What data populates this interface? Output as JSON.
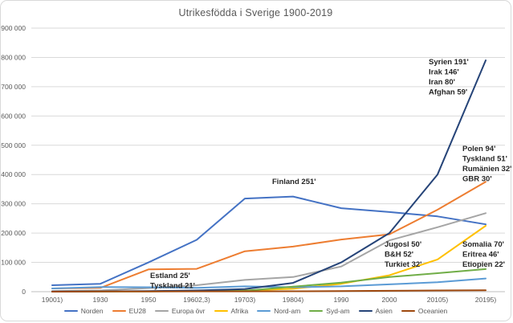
{
  "chart_data": {
    "type": "line",
    "title": "Utrikesfödda i Sverige 1900-2019",
    "unit": "persons (foreign-born population)",
    "ylim": [
      0,
      900000
    ],
    "ytick_interval": 100000,
    "ytick_labels": [
      "0",
      "100 000",
      "200 000",
      "300 000",
      "400 000",
      "500 000",
      "600 000",
      "700 000",
      "800 000",
      "900 000"
    ],
    "categories": [
      "19001)",
      "1930",
      "1950",
      "19602,3)",
      "19703)",
      "19804)",
      "1990",
      "2000",
      "20105)",
      "20195)"
    ],
    "grid": "horizontal",
    "legend_position": "bottom",
    "series": [
      {
        "name": "Norden",
        "color": "#4472C4",
        "values": [
          22000,
          27000,
          100000,
          177000,
          318000,
          325000,
          285000,
          272000,
          257000,
          230000
        ]
      },
      {
        "name": "EU28",
        "color": "#ED7D31",
        "values": [
          11000,
          13000,
          76000,
          78000,
          138000,
          154000,
          178000,
          196000,
          280000,
          375000
        ]
      },
      {
        "name": "Europa övr",
        "color": "#A5A5A5",
        "values": [
          2000,
          4000,
          12000,
          22000,
          40000,
          50000,
          86000,
          175000,
          220000,
          268000
        ]
      },
      {
        "name": "Afrika",
        "color": "#FFC000",
        "values": [
          0,
          500,
          1000,
          2000,
          4000,
          10000,
          27000,
          56000,
          110000,
          225000
        ]
      },
      {
        "name": "Nord-am",
        "color": "#5B9BD5",
        "values": [
          11000,
          16000,
          15000,
          13000,
          18000,
          15000,
          18000,
          25000,
          32000,
          45000
        ]
      },
      {
        "name": "Syd-am",
        "color": "#70AD47",
        "values": [
          0,
          500,
          1000,
          2000,
          3000,
          17000,
          31000,
          50000,
          63000,
          77000
        ]
      },
      {
        "name": "Asien",
        "color": "#264478",
        "values": [
          500,
          1000,
          2000,
          4000,
          9000,
          30000,
          100000,
          200000,
          400000,
          790000
        ]
      },
      {
        "name": "Oceanien",
        "color": "#9E480E",
        "values": [
          0,
          500,
          500,
          1000,
          1000,
          1500,
          2000,
          3000,
          4000,
          5000
        ]
      }
    ],
    "annotations": [
      {
        "name": "asien-2019-top-origins",
        "x": 533,
        "y": 70,
        "lines": [
          "Syrien 191'",
          "Irak 146'",
          "Iran 80'",
          "Afghan 59'"
        ]
      },
      {
        "name": "eu28-2019-top-origins",
        "x": 575,
        "y": 178,
        "lines": [
          "Polen 94'",
          "Tyskland 51'",
          "Rumänien 32'",
          "GBR 30'"
        ]
      },
      {
        "name": "norden-peak-origin",
        "x": 338,
        "y": 219,
        "lines": [
          "Finland 251'"
        ]
      },
      {
        "name": "mid-century-origins",
        "x": 186,
        "y": 336,
        "lines": [
          "Estland 25'",
          "Tyskland 21'"
        ]
      },
      {
        "name": "europa-ovr-top-origins",
        "x": 478,
        "y": 297,
        "lines": [
          "Jugosl 50'",
          "B&H 52'",
          "Turkiet 32'"
        ]
      },
      {
        "name": "afrika-2019-top-origins",
        "x": 575,
        "y": 297,
        "lines": [
          "Somalia 70'",
          "Eritrea 46'",
          "Etiopien 22'"
        ]
      }
    ],
    "axis_colors": {
      "gridline": "#D9D9D9",
      "zero_line": "#BFBFBF",
      "tick_text": "#595959"
    }
  }
}
